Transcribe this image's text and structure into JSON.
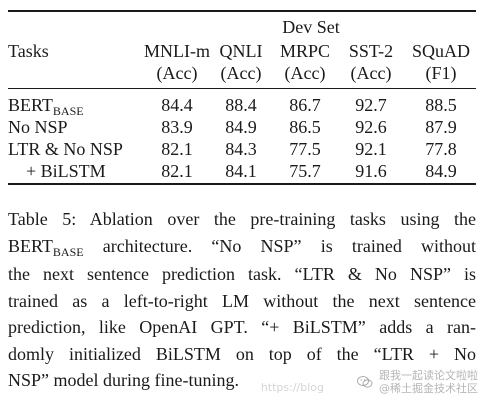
{
  "table": {
    "group_header": "Dev Set",
    "tasks_header": "Tasks",
    "columns": [
      {
        "name": "MNLI-m",
        "metric": "(Acc)"
      },
      {
        "name": "QNLI",
        "metric": "(Acc)"
      },
      {
        "name": "MRPC",
        "metric": "(Acc)"
      },
      {
        "name": "SST-2",
        "metric": "(Acc)"
      },
      {
        "name": "SQuAD",
        "metric": "(F1)"
      }
    ],
    "rows": [
      {
        "task": "BERT",
        "task_sub": "BASE",
        "values": [
          "84.4",
          "88.4",
          "86.7",
          "92.7",
          "88.5"
        ]
      },
      {
        "task": "No NSP",
        "task_sub": "",
        "values": [
          "83.9",
          "84.9",
          "86.5",
          "92.6",
          "87.9"
        ]
      },
      {
        "task": "LTR & No NSP",
        "task_sub": "",
        "values": [
          "82.1",
          "84.3",
          "77.5",
          "92.1",
          "77.8"
        ]
      },
      {
        "task": "+ BiLSTM",
        "task_sub": "",
        "values": [
          "82.1",
          "84.1",
          "75.7",
          "91.6",
          "84.9"
        ]
      }
    ]
  },
  "caption": {
    "lines": [
      "Table 5: Ablation over the pre-training tasks using the",
      "architecture. “No NSP” is trained without",
      "the next sentence prediction task. “LTR & No NSP” is",
      "trained as a left-to-right LM without the next sentence",
      "prediction, like OpenAI GPT. “+ BiLSTM” adds a ran-",
      "domly initialized BiLSTM on top of the “LTR + No",
      "NSP” model during fine-tuning."
    ],
    "line2_prefix": "BERT",
    "line2_prefix_sub": "BASE"
  },
  "watermark": {
    "left_text": "https://blog",
    "right_line1": "跟我一起读论文啦啦",
    "right_line2": "@稀土掘金技术社区"
  }
}
